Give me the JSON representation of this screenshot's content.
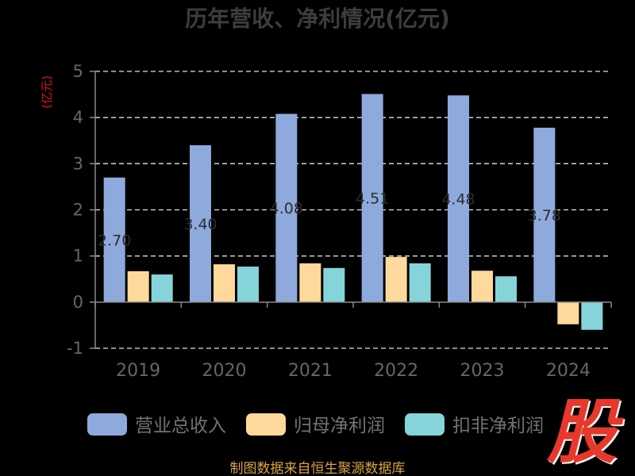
{
  "source_note": "制图数据来自恒生聚源数据库",
  "logo_text": "股",
  "accent_colors": {
    "unit_label": "#e01010",
    "source_note": "#d9a441",
    "logo": "#e8382b"
  },
  "chart_data": {
    "type": "bar",
    "title": "历年营收、净利情况(亿元)",
    "ylabel": "(亿元)",
    "categories": [
      "2019",
      "2020",
      "2021",
      "2022",
      "2023",
      "2024"
    ],
    "ylim": [
      -1,
      5
    ],
    "yticks": [
      5,
      4,
      3,
      2,
      1,
      0,
      -1
    ],
    "grid": true,
    "legend_position": "bottom",
    "series": [
      {
        "name": "营业总收入",
        "color": "#8eaadc",
        "values": [
          2.7,
          3.4,
          4.08,
          4.51,
          4.48,
          3.78
        ],
        "data_labels": [
          "2.70",
          "3.40",
          "4.08",
          "4.51",
          "4.48",
          "3.78"
        ]
      },
      {
        "name": "归母净利润",
        "color": "#ffd99b",
        "values": [
          0.67,
          0.82,
          0.84,
          0.98,
          0.68,
          -0.48
        ]
      },
      {
        "name": "扣非净利润",
        "color": "#85d4d9",
        "values": [
          0.6,
          0.77,
          0.74,
          0.84,
          0.56,
          -0.6
        ]
      }
    ]
  }
}
